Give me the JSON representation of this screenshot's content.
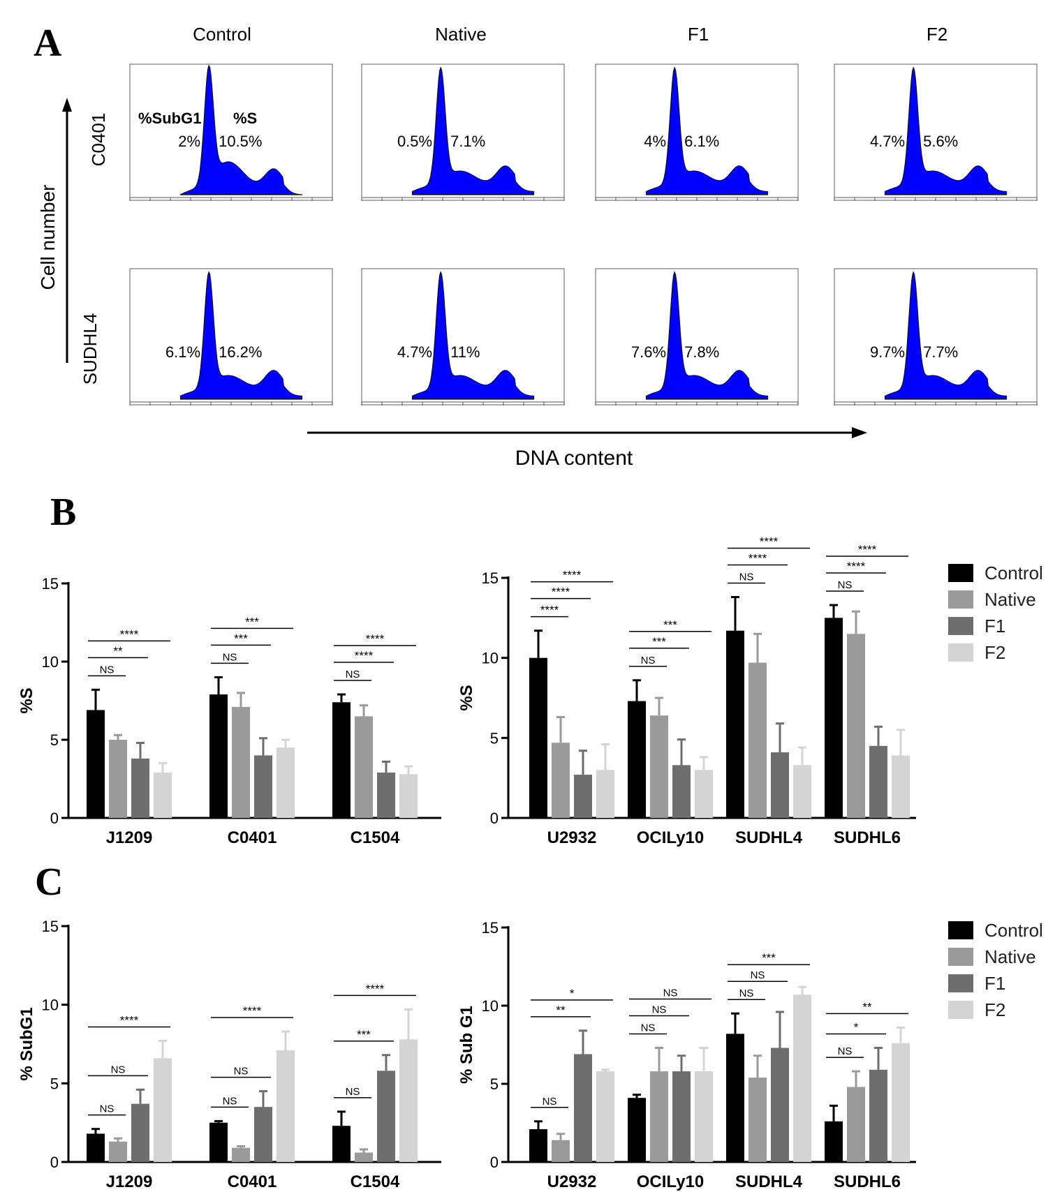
{
  "panel_a": {
    "letter": "A",
    "columns": [
      "Control",
      "Native",
      "F1",
      "F2"
    ],
    "y_axis_label": "Cell number",
    "x_axis_label": "DNA content",
    "header_labels": {
      "subg1": "%SubG1",
      "s": "%S"
    },
    "rows": [
      {
        "label": "C0401",
        "subg1": [
          "2%",
          "0.5%",
          "4%",
          "4.7%"
        ],
        "s": [
          "10.5%",
          "7.1%",
          "6.1%",
          "5.6%"
        ]
      },
      {
        "label": "SUDHL4",
        "subg1": [
          "6.1%",
          "4.7%",
          "7.6%",
          "9.7%"
        ],
        "s": [
          "16.2%",
          "11%",
          "7.8%",
          "7.7%"
        ]
      }
    ],
    "histogram_color": "#0000ff"
  },
  "panel_b": {
    "letter": "B"
  },
  "panel_c": {
    "letter": "C"
  },
  "legend": {
    "entries": [
      "Control",
      "Native",
      "F1",
      "F2"
    ],
    "colors": [
      "#000000",
      "#9a9a9a",
      "#6e6e6e",
      "#d4d4d4"
    ]
  },
  "chart_data": [
    {
      "type": "bar",
      "panel": "B-left",
      "ylabel": "%S",
      "ylim": [
        0,
        15
      ],
      "yticks": [
        "0",
        "5",
        "10",
        "15"
      ],
      "categories": [
        "J1209",
        "C0401",
        "C1504"
      ],
      "series": [
        {
          "name": "Control",
          "values": [
            6.9,
            7.9,
            7.4
          ],
          "errors": [
            1.3,
            1.1,
            0.5
          ]
        },
        {
          "name": "Native",
          "values": [
            5.0,
            7.1,
            6.5
          ],
          "errors": [
            0.3,
            0.9,
            0.7
          ]
        },
        {
          "name": "F1",
          "values": [
            3.8,
            4.0,
            2.9
          ],
          "errors": [
            1.0,
            1.1,
            0.7
          ]
        },
        {
          "name": "F2",
          "values": [
            2.9,
            4.5,
            2.8
          ],
          "errors": [
            0.6,
            0.5,
            0.5
          ]
        }
      ],
      "significance": [
        {
          "group": 0,
          "bars": [
            0,
            1
          ],
          "label": "NS",
          "level": 0
        },
        {
          "group": 0,
          "bars": [
            0,
            2
          ],
          "label": "**",
          "level": 1
        },
        {
          "group": 0,
          "bars": [
            0,
            3
          ],
          "label": "****",
          "level": 2
        },
        {
          "group": 1,
          "bars": [
            0,
            1
          ],
          "label": "NS",
          "level": 0
        },
        {
          "group": 1,
          "bars": [
            0,
            2
          ],
          "label": "***",
          "level": 1
        },
        {
          "group": 1,
          "bars": [
            0,
            3
          ],
          "label": "***",
          "level": 2
        },
        {
          "group": 2,
          "bars": [
            0,
            1
          ],
          "label": "NS",
          "level": 0
        },
        {
          "group": 2,
          "bars": [
            0,
            2
          ],
          "label": "****",
          "level": 1
        },
        {
          "group": 2,
          "bars": [
            0,
            3
          ],
          "label": "****",
          "level": 2
        }
      ]
    },
    {
      "type": "bar",
      "panel": "B-right",
      "ylabel": "%S",
      "ylim": [
        0,
        15
      ],
      "yticks": [
        "0",
        "5",
        "10",
        "15"
      ],
      "categories": [
        "U2932",
        "OCILy10",
        "SUDHL4",
        "SUDHL6"
      ],
      "series": [
        {
          "name": "Control",
          "values": [
            10.0,
            7.3,
            11.7,
            12.5
          ],
          "errors": [
            1.7,
            1.3,
            2.1,
            0.8
          ]
        },
        {
          "name": "Native",
          "values": [
            4.7,
            6.4,
            9.7,
            11.5
          ],
          "errors": [
            1.6,
            1.1,
            1.8,
            1.4
          ]
        },
        {
          "name": "F1",
          "values": [
            2.7,
            3.3,
            4.1,
            4.5
          ],
          "errors": [
            1.5,
            1.6,
            1.8,
            1.2
          ]
        },
        {
          "name": "F2",
          "values": [
            3.0,
            3.0,
            3.3,
            3.9
          ],
          "errors": [
            1.6,
            0.8,
            1.1,
            1.6
          ]
        }
      ],
      "significance": [
        {
          "group": 0,
          "bars": [
            0,
            1
          ],
          "label": "****",
          "level": 0
        },
        {
          "group": 0,
          "bars": [
            0,
            2
          ],
          "label": "****",
          "level": 1
        },
        {
          "group": 0,
          "bars": [
            0,
            3
          ],
          "label": "****",
          "level": 2
        },
        {
          "group": 1,
          "bars": [
            0,
            1
          ],
          "label": "NS",
          "level": 0
        },
        {
          "group": 1,
          "bars": [
            0,
            2
          ],
          "label": "***",
          "level": 1
        },
        {
          "group": 1,
          "bars": [
            0,
            3
          ],
          "label": "***",
          "level": 2
        },
        {
          "group": 2,
          "bars": [
            0,
            1
          ],
          "label": "NS",
          "level": 0
        },
        {
          "group": 2,
          "bars": [
            0,
            2
          ],
          "label": "****",
          "level": 1
        },
        {
          "group": 2,
          "bars": [
            0,
            3
          ],
          "label": "****",
          "level": 2
        },
        {
          "group": 3,
          "bars": [
            0,
            1
          ],
          "label": "NS",
          "level": 0
        },
        {
          "group": 3,
          "bars": [
            0,
            2
          ],
          "label": "****",
          "level": 1
        },
        {
          "group": 3,
          "bars": [
            0,
            3
          ],
          "label": "****",
          "level": 2
        }
      ]
    },
    {
      "type": "bar",
      "panel": "C-left",
      "ylabel": "% SubG1",
      "ylim": [
        0,
        15
      ],
      "yticks": [
        "0",
        "5",
        "10",
        "15"
      ],
      "categories": [
        "J1209",
        "C0401",
        "C1504"
      ],
      "series": [
        {
          "name": "Control",
          "values": [
            1.8,
            2.5,
            2.3
          ],
          "errors": [
            0.3,
            0.1,
            0.9
          ]
        },
        {
          "name": "Native",
          "values": [
            1.3,
            0.9,
            0.6
          ],
          "errors": [
            0.2,
            0.1,
            0.2
          ]
        },
        {
          "name": "F1",
          "values": [
            3.7,
            3.5,
            5.8
          ],
          "errors": [
            0.9,
            1.0,
            1.0
          ]
        },
        {
          "name": "F2",
          "values": [
            6.6,
            7.1,
            7.8
          ],
          "errors": [
            1.1,
            1.2,
            1.9
          ]
        }
      ],
      "significance": [
        {
          "group": 0,
          "bars": [
            0,
            1
          ],
          "label": "NS",
          "level": 0
        },
        {
          "group": 0,
          "bars": [
            0,
            2
          ],
          "label": "NS",
          "level": 1
        },
        {
          "group": 0,
          "bars": [
            0,
            3
          ],
          "label": "****",
          "level": 2
        },
        {
          "group": 1,
          "bars": [
            0,
            1
          ],
          "label": "NS",
          "level": 0
        },
        {
          "group": 1,
          "bars": [
            0,
            2
          ],
          "label": "NS",
          "level": 1
        },
        {
          "group": 1,
          "bars": [
            0,
            3
          ],
          "label": "****",
          "level": 2
        },
        {
          "group": 2,
          "bars": [
            0,
            1
          ],
          "label": "NS",
          "level": 0
        },
        {
          "group": 2,
          "bars": [
            0,
            2
          ],
          "label": "***",
          "level": 1
        },
        {
          "group": 2,
          "bars": [
            0,
            3
          ],
          "label": "****",
          "level": 2
        }
      ]
    },
    {
      "type": "bar",
      "panel": "C-right",
      "ylabel": "% Sub G1",
      "ylim": [
        0,
        15
      ],
      "yticks": [
        "0",
        "5",
        "10",
        "15"
      ],
      "categories": [
        "U2932",
        "OCILy10",
        "SUDHL4",
        "SUDHL6"
      ],
      "series": [
        {
          "name": "Control",
          "values": [
            2.1,
            4.1,
            8.2,
            2.6
          ],
          "errors": [
            0.5,
            0.2,
            1.3,
            1.0
          ]
        },
        {
          "name": "Native",
          "values": [
            1.4,
            5.8,
            5.4,
            4.8
          ],
          "errors": [
            0.4,
            1.5,
            1.4,
            1.0
          ]
        },
        {
          "name": "F1",
          "values": [
            6.9,
            5.8,
            7.3,
            5.9
          ],
          "errors": [
            1.5,
            1.0,
            2.3,
            1.4
          ]
        },
        {
          "name": "F2",
          "values": [
            5.8,
            5.8,
            10.7,
            7.6
          ],
          "errors": [
            0.1,
            1.5,
            0.5,
            1.0
          ]
        }
      ],
      "significance": [
        {
          "group": 0,
          "bars": [
            0,
            1
          ],
          "label": "NS",
          "level": 0
        },
        {
          "group": 0,
          "bars": [
            0,
            2
          ],
          "label": "**",
          "level": 1
        },
        {
          "group": 0,
          "bars": [
            0,
            3
          ],
          "label": "*",
          "level": 2
        },
        {
          "group": 1,
          "bars": [
            0,
            1
          ],
          "label": "NS",
          "level": 0
        },
        {
          "group": 1,
          "bars": [
            0,
            2
          ],
          "label": "NS",
          "level": 1
        },
        {
          "group": 1,
          "bars": [
            0,
            3
          ],
          "label": "NS",
          "level": 2
        },
        {
          "group": 2,
          "bars": [
            0,
            1
          ],
          "label": "NS",
          "level": 0
        },
        {
          "group": 2,
          "bars": [
            0,
            2
          ],
          "label": "NS",
          "level": 1
        },
        {
          "group": 2,
          "bars": [
            0,
            3
          ],
          "label": "***",
          "level": 2
        },
        {
          "group": 3,
          "bars": [
            0,
            1
          ],
          "label": "NS",
          "level": 0
        },
        {
          "group": 3,
          "bars": [
            0,
            2
          ],
          "label": "*",
          "level": 1
        },
        {
          "group": 3,
          "bars": [
            0,
            3
          ],
          "label": "**",
          "level": 2
        }
      ]
    }
  ]
}
